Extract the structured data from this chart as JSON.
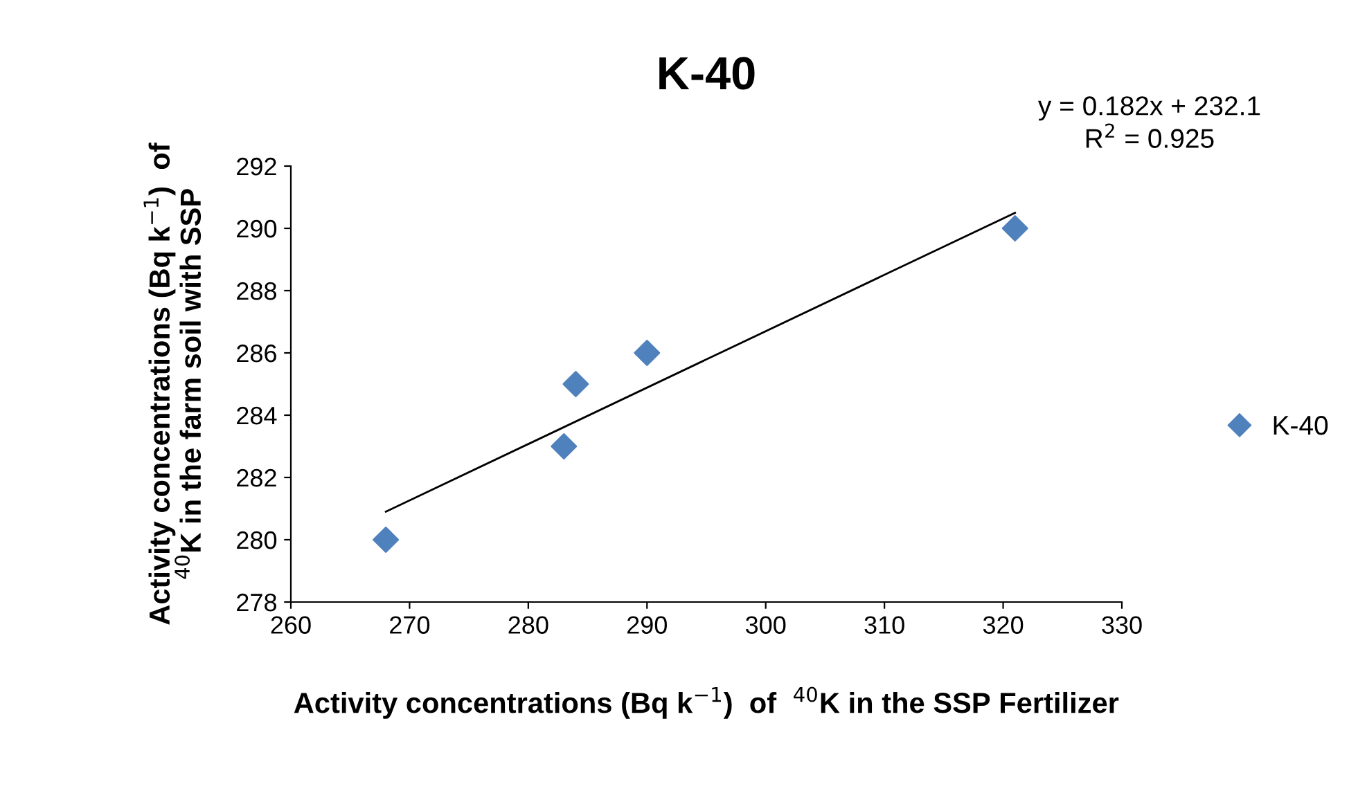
{
  "chart_data": {
    "type": "scatter",
    "title": "K-40",
    "xlabel": "Activity concentrations (Bq k$^{−1}$)  of  $^{40}$K in the SSP Fertilizer",
    "ylabel": "Activity concentrations (Bq k$^{−1}$)  of\n$^{40}$K in the farm soil with SSP",
    "series": [
      {
        "name": "K-40",
        "color": "#4f81bd",
        "marker": "diamond",
        "x": [
          268,
          283,
          284,
          290,
          321
        ],
        "values": [
          280,
          283,
          285,
          286,
          290
        ]
      },
      {
        "type": "line",
        "color": "#000000",
        "x": [
          268,
          321
        ],
        "values": [
          280.9,
          290.5
        ]
      }
    ],
    "annotations": [
      "y = 0.182x + 232.1\nR$^{2}$ = 0.925"
    ],
    "xlim": [
      260,
      330
    ],
    "xticks": [
      260,
      270,
      280,
      290,
      300,
      310,
      320,
      330
    ],
    "ylim": [
      278,
      292
    ],
    "yticks": [
      278,
      280,
      282,
      284,
      286,
      288,
      290,
      292
    ],
    "grid": false,
    "legend": "right"
  }
}
